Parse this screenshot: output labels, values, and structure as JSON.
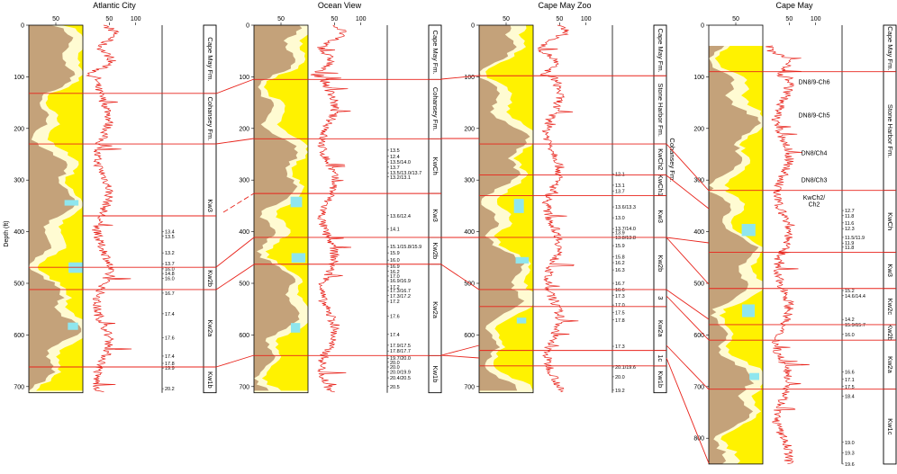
{
  "y_axis_label": "Depth (ft)",
  "wells": [
    {
      "name": "Atlantic City",
      "lithology_xlim": [
        0,
        100
      ],
      "lithology_ticks": [
        50
      ],
      "gamma_xlim": [
        0,
        150
      ],
      "gamma_ticks": [
        50,
        100
      ],
      "ylim": [
        0,
        712
      ],
      "depth_ticks": [
        0,
        100,
        200,
        300,
        400,
        500,
        600,
        700
      ],
      "units": [
        {
          "label": "Cape May Fm.",
          "top": 0,
          "base": 132
        },
        {
          "label": "Cohansey Fm.",
          "top": 132,
          "base": 230
        },
        {
          "label": "Kw3",
          "top": 230,
          "base": 469
        },
        {
          "label": "Kw2b",
          "top": 469,
          "base": 512
        },
        {
          "label": "Kw2a",
          "top": 512,
          "base": 662
        },
        {
          "label": "Kw1b",
          "top": 662,
          "base": 712
        }
      ],
      "ages": [
        {
          "label": "13.4",
          "depth": 400
        },
        {
          "label": "13.5",
          "depth": 409
        },
        {
          "label": "13.2",
          "depth": 441
        },
        {
          "label": "13.7",
          "depth": 462
        },
        {
          "label": "16.0",
          "depth": 472
        },
        {
          "label": "14.8",
          "depth": 481
        },
        {
          "label": "16.0",
          "depth": 490
        },
        {
          "label": "16.7",
          "depth": 519
        },
        {
          "label": "17.4",
          "depth": 559
        },
        {
          "label": "17.6",
          "depth": 605
        },
        {
          "label": "17.4",
          "depth": 641
        },
        {
          "label": "17.8",
          "depth": 655
        },
        {
          "label": "19.9",
          "depth": 664
        },
        {
          "label": "20.2",
          "depth": 704
        }
      ],
      "log_labels": []
    },
    {
      "name": "Ocean View",
      "lithology_xlim": [
        0,
        100
      ],
      "lithology_ticks": [
        50
      ],
      "gamma_xlim": [
        0,
        150
      ],
      "gamma_ticks": [
        50,
        100
      ],
      "ylim": [
        0,
        712
      ],
      "depth_ticks": [
        0,
        100,
        200,
        300,
        400,
        500,
        600,
        700
      ],
      "units": [
        {
          "label": "Cape May Fm.",
          "top": 0,
          "base": 105
        },
        {
          "label": "Cohansey Fm.",
          "top": 105,
          "base": 220
        },
        {
          "label": "KwCh",
          "top": 220,
          "base": 326
        },
        {
          "label": "Kw3",
          "top": 326,
          "base": 411
        },
        {
          "label": "Kw2b",
          "top": 411,
          "base": 463
        },
        {
          "label": "Kw2a",
          "top": 463,
          "base": 640
        },
        {
          "label": "Kw1b",
          "top": 640,
          "base": 712
        }
      ],
      "ages": [
        {
          "label": "13.5",
          "depth": 242
        },
        {
          "label": "12.4",
          "depth": 254
        },
        {
          "label": "13.5/14.0",
          "depth": 265
        },
        {
          "label": "13.7",
          "depth": 275
        },
        {
          "label": "13.5/13.0/13.7",
          "depth": 286
        },
        {
          "label": "13.2/13.1",
          "depth": 294
        },
        {
          "label": "13.6/12.4",
          "depth": 369
        },
        {
          "label": "14.1",
          "depth": 395
        },
        {
          "label": "15.1/15.8/15.9",
          "depth": 429
        },
        {
          "label": "15.9",
          "depth": 441
        },
        {
          "label": "16.0",
          "depth": 455
        },
        {
          "label": "16.9",
          "depth": 467
        },
        {
          "label": "16.2",
          "depth": 477
        },
        {
          "label": "17.0",
          "depth": 486
        },
        {
          "label": "16.9/16.9",
          "depth": 495
        },
        {
          "label": "17.2",
          "depth": 507
        },
        {
          "label": "17.3/16.7",
          "depth": 514
        },
        {
          "label": "17.3/17.2",
          "depth": 524
        },
        {
          "label": "17.2",
          "depth": 535
        },
        {
          "label": "17.6",
          "depth": 564
        },
        {
          "label": "17.4",
          "depth": 599
        },
        {
          "label": "17.9/17.5",
          "depth": 620
        },
        {
          "label": "17.8/17.7",
          "depth": 631
        },
        {
          "label": "19.7/20.0",
          "depth": 645
        },
        {
          "label": "20.0",
          "depth": 653
        },
        {
          "label": "20.0",
          "depth": 662
        },
        {
          "label": "20.0/19.9",
          "depth": 672
        },
        {
          "label": "20.4/20.5",
          "depth": 683
        },
        {
          "label": "20.5",
          "depth": 700
        }
      ],
      "log_labels": []
    },
    {
      "name": "Cape May Zoo",
      "lithology_xlim": [
        0,
        100
      ],
      "lithology_ticks": [
        50
      ],
      "gamma_xlim": [
        0,
        150
      ],
      "gamma_ticks": [
        50,
        100
      ],
      "ylim": [
        0,
        712
      ],
      "depth_ticks": [
        0,
        100,
        200,
        300,
        400,
        500,
        600,
        700
      ],
      "units": [
        {
          "label": "Cape May Fm.",
          "top": 0,
          "base": 98
        },
        {
          "label": "Stone Harbor Fm.",
          "top": 98,
          "base": 230
        },
        {
          "label": "KwCh2",
          "top": 230,
          "base": 290
        },
        {
          "label": "KwCh1",
          "top": 290,
          "base": 330
        },
        {
          "label": "Kw3",
          "top": 330,
          "base": 411
        },
        {
          "label": "Kw2b",
          "top": 411,
          "base": 512
        },
        {
          "label": "3",
          "top": 512,
          "base": 545
        },
        {
          "label": "Kw2a",
          "top": 545,
          "base": 630
        },
        {
          "label": "1c",
          "top": 630,
          "base": 660
        },
        {
          "label": "Kw1b",
          "top": 660,
          "base": 712
        }
      ],
      "ages": [
        {
          "label": "12.1",
          "depth": 288
        },
        {
          "label": "13.1",
          "depth": 310
        },
        {
          "label": "13.7",
          "depth": 321
        },
        {
          "label": "13.6/13.3",
          "depth": 352
        },
        {
          "label": "13.0",
          "depth": 373
        },
        {
          "label": "13.7/14.0",
          "depth": 394
        },
        {
          "label": "13.9",
          "depth": 402
        },
        {
          "label": "13.8/13.8",
          "depth": 411
        },
        {
          "label": "15.9",
          "depth": 427
        },
        {
          "label": "15.8",
          "depth": 449
        },
        {
          "label": "16.2",
          "depth": 460
        },
        {
          "label": "16.3",
          "depth": 474
        },
        {
          "label": "16.7",
          "depth": 500
        },
        {
          "label": "16.6",
          "depth": 512
        },
        {
          "label": "17.3",
          "depth": 524
        },
        {
          "label": "17.0",
          "depth": 542
        },
        {
          "label": "17.5",
          "depth": 557
        },
        {
          "label": "17.8",
          "depth": 571
        },
        {
          "label": "17.3",
          "depth": 622
        },
        {
          "label": "20.1/19.6",
          "depth": 662
        },
        {
          "label": "20.0",
          "depth": 681
        },
        {
          "label": "19.2",
          "depth": 707
        }
      ],
      "log_labels": [],
      "side_labels": [
        {
          "label": "Cohansey Fm.",
          "depth": 261
        }
      ]
    },
    {
      "name": "Cape May",
      "lithology_xlim": [
        0,
        100
      ],
      "lithology_ticks": [
        50
      ],
      "gamma_xlim": [
        0,
        150
      ],
      "gamma_ticks": [
        50,
        100
      ],
      "ylim": [
        0,
        850
      ],
      "depth_ticks": [
        0,
        100,
        200,
        300,
        400,
        500,
        600,
        700,
        800
      ],
      "units": [
        {
          "label": "Cape May Fm.",
          "top": 0,
          "base": 90
        },
        {
          "label": "Stone Harbor Fm.",
          "top": 90,
          "base": 320
        },
        {
          "label": "KwCh",
          "top": 320,
          "base": 440
        },
        {
          "label": "Kw3",
          "top": 440,
          "base": 510
        },
        {
          "label": "Kw2c",
          "top": 510,
          "base": 580
        },
        {
          "label": "Kw2b",
          "top": 580,
          "base": 610
        },
        {
          "label": "Kw2a",
          "top": 610,
          "base": 705
        },
        {
          "label": "Kw1c",
          "top": 705,
          "base": 850
        }
      ],
      "ages": [
        {
          "label": "12.7",
          "depth": 359
        },
        {
          "label": "11.8",
          "depth": 369
        },
        {
          "label": "11.6",
          "depth": 383
        },
        {
          "label": "12.3",
          "depth": 394
        },
        {
          "label": "11.5/11.9",
          "depth": 411
        },
        {
          "label": "11.9",
          "depth": 422
        },
        {
          "label": "11.8",
          "depth": 430
        },
        {
          "label": "15.2",
          "depth": 514
        },
        {
          "label": "14.6/14.4",
          "depth": 524
        },
        {
          "label": "14.2",
          "depth": 570
        },
        {
          "label": "15.9/15.7",
          "depth": 580
        },
        {
          "label": "16.0",
          "depth": 599
        },
        {
          "label": "16.6",
          "depth": 672
        },
        {
          "label": "17.1",
          "depth": 686
        },
        {
          "label": "17.5",
          "depth": 700
        },
        {
          "label": "18.4",
          "depth": 719
        },
        {
          "label": "19.0",
          "depth": 808
        },
        {
          "label": "19.3",
          "depth": 828
        },
        {
          "label": "19.6",
          "depth": 850
        }
      ],
      "log_labels": [
        {
          "label": "DN8/9-Ch6",
          "depth": 110
        },
        {
          "label": "DN8/9-Ch5",
          "depth": 174
        },
        {
          "label": "DN8/Ch4",
          "depth": 247
        },
        {
          "label": "DN8/Ch3",
          "depth": 300
        },
        {
          "label": "KwCh2/",
          "depth": 334
        },
        {
          "label": "Ch2",
          "depth": 347
        }
      ]
    }
  ]
}
